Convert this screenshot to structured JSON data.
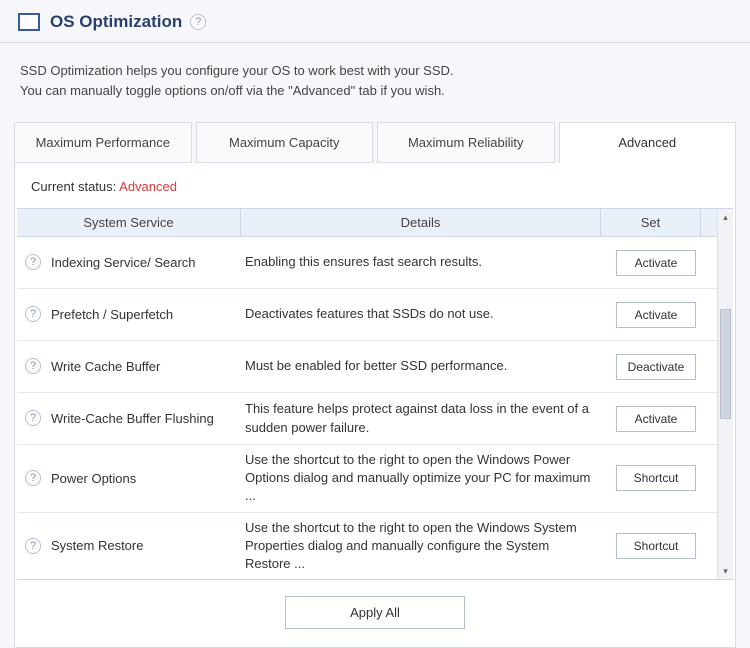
{
  "header": {
    "title": "OS Optimization"
  },
  "intro": {
    "line1": "SSD Optimization helps you configure your OS to work best with your SSD.",
    "line2": "You can manually toggle options on/off via the \"Advanced\" tab if you wish."
  },
  "tabs": {
    "perf": "Maximum Performance",
    "cap": "Maximum Capacity",
    "rel": "Maximum Reliability",
    "adv": "Advanced"
  },
  "status": {
    "label": "Current status: ",
    "value": "Advanced"
  },
  "columns": {
    "service": "System Service",
    "details": "Details",
    "set": "Set"
  },
  "rows": [
    {
      "service": "Indexing Service/ Search",
      "details": "Enabling this ensures fast search results.",
      "button": "Activate"
    },
    {
      "service": "Prefetch / Superfetch",
      "details": "Deactivates features that SSDs do not use.",
      "button": "Activate"
    },
    {
      "service": "Write Cache Buffer",
      "details": "Must be enabled for better SSD performance.",
      "button": "Deactivate"
    },
    {
      "service": "Write-Cache Buffer Flushing",
      "details": "This feature helps protect against data loss in the event of a sudden power failure.",
      "button": "Activate"
    },
    {
      "service": "Power Options",
      "details": "Use the shortcut to the right to open the Windows Power Options dialog and manually optimize your PC for maximum ...",
      "button": "Shortcut"
    },
    {
      "service": "System Restore",
      "details": "Use the shortcut to the right to open the Windows System Properties dialog and manually configure the System Restore ...",
      "button": "Shortcut"
    }
  ],
  "apply": "Apply All",
  "colors": {
    "accent": "#2a3f6b",
    "status_red": "#d93a3a",
    "header_bg": "#eaf0f8",
    "page_bg": "#f5f7fa",
    "border": "#d8dde4"
  }
}
